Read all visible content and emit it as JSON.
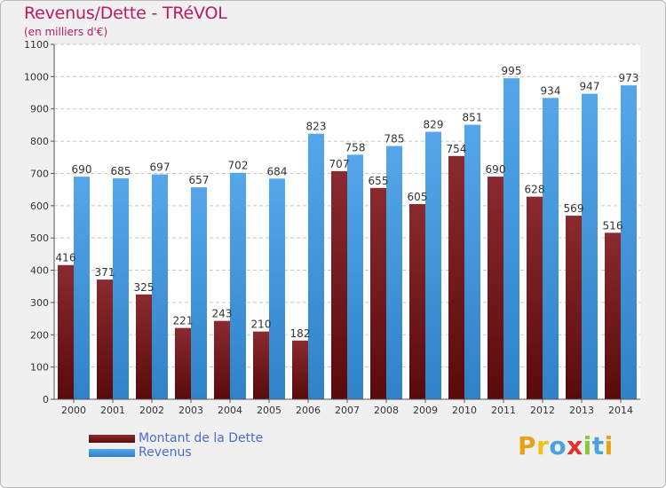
{
  "chart_data": {
    "type": "bar",
    "title": "Revenus/Dette - TRéVOL",
    "subtitle": "(en milliers d'€)",
    "categories": [
      "2000",
      "2001",
      "2002",
      "2003",
      "2004",
      "2005",
      "2006",
      "2007",
      "2008",
      "2009",
      "2010",
      "2011",
      "2012",
      "2013",
      "2014"
    ],
    "series": [
      {
        "name": "Montant de la Dette",
        "color": "#7a1b1f",
        "values": [
          416,
          371,
          325,
          221,
          243,
          210,
          182,
          707,
          655,
          605,
          754,
          690,
          628,
          569,
          516
        ]
      },
      {
        "name": "Revenus",
        "color": "#3f94da",
        "values": [
          690,
          685,
          697,
          657,
          702,
          684,
          823,
          758,
          785,
          829,
          851,
          995,
          934,
          947,
          973
        ]
      }
    ],
    "ylim": [
      0,
      1100
    ],
    "yticks": [
      0,
      100,
      200,
      300,
      400,
      500,
      600,
      700,
      800,
      900,
      1000,
      1100
    ],
    "grid": true,
    "legend_position": "bottom-left"
  },
  "logo": {
    "letters": [
      "P",
      "r",
      "o",
      "x",
      "i",
      "t",
      "i"
    ]
  }
}
